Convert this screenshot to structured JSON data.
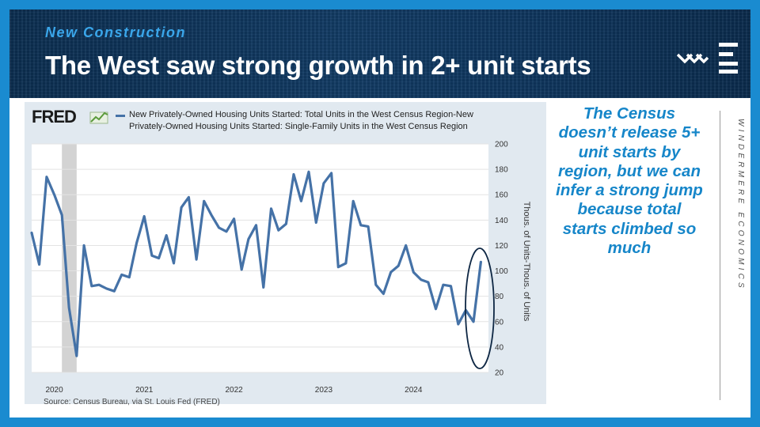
{
  "header": {
    "subtitle": "New Construction",
    "title": "The West saw strong growth in 2+ unit starts"
  },
  "fred": {
    "logo": "FRED",
    "legend": "New Privately-Owned Housing Units Started: Total Units in the West Census Region-New Privately-Owned Housing Units Started: Single-Family Units in the West Census Region",
    "source": "Source: Census Bureau, via St. Louis Fed (FRED)"
  },
  "side_note": "The Census doesn’t release 5+ unit starts by region, but we can infer a strong jump because total starts climbed so much",
  "brand": "WINDERMERE ECONOMICS",
  "colors": {
    "series": "#4572a7",
    "accent": "#1686c9",
    "recession": "#d3d3d3",
    "panel": "#e1e9f0"
  },
  "chart_data": {
    "type": "line",
    "ylabel": "Thous. of Units-Thous. of Units",
    "ylim": [
      20,
      200
    ],
    "yticks": [
      "20",
      "40",
      "60",
      "80",
      "100",
      "120",
      "140",
      "160",
      "180",
      "200"
    ],
    "xticks": [
      "2020",
      "2021",
      "2022",
      "2023",
      "2024"
    ],
    "recession_band": [
      "2020-02",
      "2020-04"
    ],
    "grid": true,
    "series": [
      {
        "x": [
          "2019-10",
          "2019-11",
          "2019-12",
          "2020-01",
          "2020-02",
          "2020-03",
          "2020-04",
          "2020-05",
          "2020-06",
          "2020-07",
          "2020-08",
          "2020-09",
          "2020-10",
          "2020-11",
          "2020-12",
          "2021-01",
          "2021-02",
          "2021-03",
          "2021-04",
          "2021-05",
          "2021-06",
          "2021-07",
          "2021-08",
          "2021-09",
          "2021-10",
          "2021-11",
          "2021-12",
          "2022-01",
          "2022-02",
          "2022-03",
          "2022-04",
          "2022-05",
          "2022-06",
          "2022-07",
          "2022-08",
          "2022-09",
          "2022-10",
          "2022-11",
          "2022-12",
          "2023-01",
          "2023-02",
          "2023-03",
          "2023-04",
          "2023-05",
          "2023-06",
          "2023-07",
          "2023-08",
          "2023-09",
          "2023-10",
          "2023-11",
          "2023-12",
          "2024-01",
          "2024-02",
          "2024-03",
          "2024-04",
          "2024-05",
          "2024-06",
          "2024-07",
          "2024-08",
          "2024-09",
          "2024-10"
        ],
        "values": [
          130,
          105,
          174,
          160,
          144,
          71,
          33,
          120,
          88,
          89,
          86,
          84,
          97,
          95,
          122,
          143,
          112,
          110,
          128,
          106,
          150,
          158,
          109,
          155,
          144,
          134,
          131,
          141,
          101,
          125,
          136,
          87,
          149,
          132,
          137,
          176,
          155,
          178,
          138,
          169,
          177,
          103,
          106,
          155,
          136,
          135,
          89,
          82,
          99,
          104,
          120,
          99,
          93,
          91,
          70,
          89,
          88,
          58,
          69,
          60,
          107
        ]
      }
    ]
  }
}
